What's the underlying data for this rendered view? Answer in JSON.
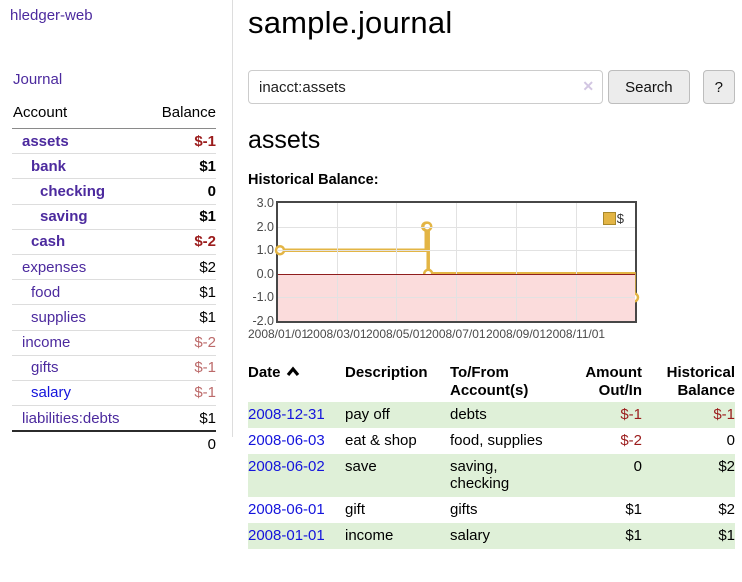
{
  "app": {
    "brand": "hledger-web"
  },
  "sidebar": {
    "journal_label": "Journal",
    "accounts_table": {
      "headers": {
        "account": "Account",
        "balance": "Balance"
      },
      "rows": [
        {
          "name": "assets",
          "balance": "$-1",
          "level": 0,
          "bold": true,
          "balance_tone": "neg-strong",
          "link_tone": "purple"
        },
        {
          "name": "bank",
          "balance": "$1",
          "level": 1,
          "bold": true,
          "balance_tone": "",
          "link_tone": "purple"
        },
        {
          "name": "checking",
          "balance": "0",
          "level": 2,
          "bold": true,
          "balance_tone": "",
          "link_tone": "purple"
        },
        {
          "name": "saving",
          "balance": "$1",
          "level": 2,
          "bold": true,
          "balance_tone": "",
          "link_tone": "purple"
        },
        {
          "name": "cash",
          "balance": "$-2",
          "level": 1,
          "bold": true,
          "balance_tone": "neg-strong",
          "link_tone": "purple"
        },
        {
          "name": "expenses",
          "balance": "$2",
          "level": 0,
          "bold": false,
          "balance_tone": "",
          "link_tone": "purple"
        },
        {
          "name": "food",
          "balance": "$1",
          "level": 1,
          "bold": false,
          "balance_tone": "",
          "link_tone": "purple"
        },
        {
          "name": "supplies",
          "balance": "$1",
          "level": 1,
          "bold": false,
          "balance_tone": "",
          "link_tone": "purple"
        },
        {
          "name": "income",
          "balance": "$-2",
          "level": 0,
          "bold": false,
          "balance_tone": "neg-soft",
          "link_tone": "purple"
        },
        {
          "name": "gifts",
          "balance": "$-1",
          "level": 1,
          "bold": false,
          "balance_tone": "neg-soft",
          "link_tone": "purple"
        },
        {
          "name": "salary",
          "balance": "$-1",
          "level": 1,
          "bold": false,
          "balance_tone": "neg-soft",
          "link_tone": "blue"
        },
        {
          "name": "liabilities:debts",
          "balance": "$1",
          "level": 0,
          "bold": false,
          "balance_tone": "",
          "link_tone": "purple"
        }
      ],
      "total": "0"
    }
  },
  "main": {
    "title": "sample.journal",
    "search": {
      "query": "inacct:assets",
      "clear_icon": "✕",
      "search_button": "Search",
      "help_button": "?"
    },
    "account_heading": "assets",
    "chart_label": "Historical Balance:",
    "register_table": {
      "headers": [
        "Date",
        "Description",
        "To/From Account(s)",
        "Amount Out/In",
        "Historical Balance"
      ],
      "rows": [
        {
          "date": "2008-12-31",
          "description": "pay off",
          "accounts_lines": [
            "debts"
          ],
          "amount": "$-1",
          "amount_tone": "neg",
          "balance": "$-1",
          "balance_tone": "neg"
        },
        {
          "date": "2008-06-03",
          "description": "eat & shop",
          "accounts_lines": [
            "food, supplies"
          ],
          "amount": "$-2",
          "amount_tone": "neg",
          "balance": "0",
          "balance_tone": ""
        },
        {
          "date": "2008-06-02",
          "description": "save",
          "accounts_lines": [
            "saving,",
            "checking"
          ],
          "amount": "0",
          "amount_tone": "",
          "balance": "$2",
          "balance_tone": ""
        },
        {
          "date": "2008-06-01",
          "description": "gift",
          "accounts_lines": [
            "gifts"
          ],
          "amount": "$1",
          "amount_tone": "",
          "balance": "$2",
          "balance_tone": ""
        },
        {
          "date": "2008-01-01",
          "description": "income",
          "accounts_lines": [
            "salary"
          ],
          "amount": "$1",
          "amount_tone": "",
          "balance": "$1",
          "balance_tone": ""
        }
      ]
    }
  },
  "chart_data": {
    "type": "line",
    "title": "Historical Balance:",
    "interpolation": "step-after",
    "x_range": [
      "2008-01-01",
      "2009-01-01"
    ],
    "ylim": [
      -2,
      3
    ],
    "yticks": [
      "3.0",
      "2.0",
      "1.0",
      "0.0",
      "-1.0",
      "-2.0"
    ],
    "xticks": [
      "2008/01/01",
      "2008/03/01",
      "2008/05/01",
      "2008/07/01",
      "2008/09/01",
      "2008/11/01"
    ],
    "grid": true,
    "legend_position": "top-right",
    "series": [
      {
        "name": "$",
        "points": [
          [
            "2008-01-01",
            1
          ],
          [
            "2008-06-01",
            2
          ],
          [
            "2008-06-02",
            2
          ],
          [
            "2008-06-03",
            0
          ],
          [
            "2008-12-31",
            -1
          ]
        ]
      }
    ],
    "colors": {
      "line": "#e3b545",
      "point_fill": "#ffffff",
      "negative_region_fill": "#fbdcdc",
      "zero_line": "#8f1d1d",
      "grid": "#e2e2e2",
      "border": "#474747"
    }
  }
}
